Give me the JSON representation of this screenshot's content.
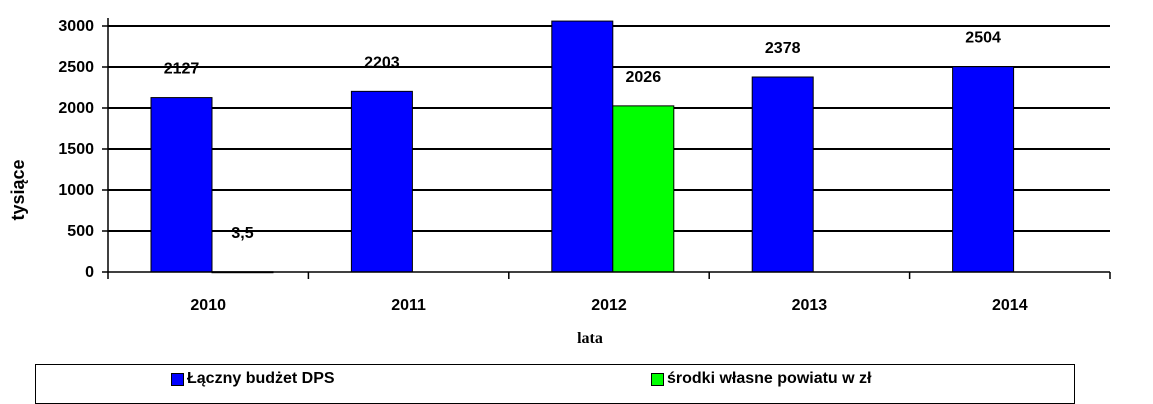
{
  "chart_data": {
    "type": "bar",
    "categories": [
      "2010",
      "2011",
      "2012",
      "2013",
      "2014"
    ],
    "series": [
      {
        "name": "Łączny budżet DPS",
        "color": "#0000ff",
        "values": [
          2127,
          2203,
          3060,
          2378,
          2504
        ],
        "labels": [
          "2127",
          "2203",
          "",
          "2378",
          "2504"
        ]
      },
      {
        "name": "środki własne  powiatu w zł",
        "color": "#00ff00",
        "values": [
          3.5,
          null,
          2026,
          null,
          null
        ],
        "labels": [
          "3,5",
          "",
          "2026",
          "",
          ""
        ]
      }
    ],
    "xlabel": "lata",
    "ylabel": "tysiące",
    "ylim": [
      0,
      3000
    ],
    "yticks": [
      0,
      500,
      1000,
      1500,
      2000,
      2500,
      3000
    ],
    "grid": true,
    "legend_position": "bottom"
  }
}
